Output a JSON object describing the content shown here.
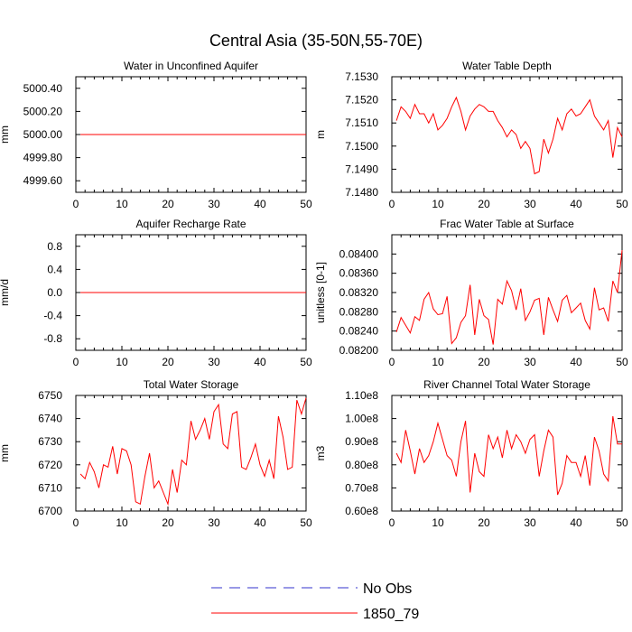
{
  "figure": {
    "title": "Central Asia (35-50N,55-70E)"
  },
  "colors": {
    "model_line": "#ff0000",
    "obs_line": "#3333cc",
    "axis": "#000000",
    "background": "#ffffff"
  },
  "legend": {
    "items": [
      {
        "label": "No Obs",
        "style": "dashed",
        "color": "#3333cc"
      },
      {
        "label": "1850_79",
        "style": "solid",
        "color": "#ff0000"
      }
    ]
  },
  "chart_data": [
    {
      "type": "line",
      "title": "Water in Unconfined Aquifer",
      "ylabel": "mm",
      "xlabel": "",
      "xlim": [
        0,
        50
      ],
      "ylim": [
        4999.5,
        5000.5
      ],
      "xticks": [
        0,
        10,
        20,
        30,
        40,
        50
      ],
      "xtick_labels": [
        "0",
        "10",
        "20",
        "30",
        "40",
        "50"
      ],
      "yticks": [
        4999.6,
        4999.8,
        5000.0,
        5000.2,
        5000.4
      ],
      "ytick_labels": [
        "4999.60",
        "4999.80",
        "5000.00",
        "5000.20",
        "5000.40"
      ],
      "series": [
        {
          "name": "1850_79",
          "x": [
            1,
            2,
            3,
            4,
            5,
            6,
            7,
            8,
            9,
            10,
            11,
            12,
            13,
            14,
            15,
            16,
            17,
            18,
            19,
            20,
            21,
            22,
            23,
            24,
            25,
            26,
            27,
            28,
            29,
            30,
            31,
            32,
            33,
            34,
            35,
            36,
            37,
            38,
            39,
            40,
            41,
            42,
            43,
            44,
            45,
            46,
            47,
            48,
            49,
            50
          ],
          "values": [
            5000,
            5000,
            5000,
            5000,
            5000,
            5000,
            5000,
            5000,
            5000,
            5000,
            5000,
            5000,
            5000,
            5000,
            5000,
            5000,
            5000,
            5000,
            5000,
            5000,
            5000,
            5000,
            5000,
            5000,
            5000,
            5000,
            5000,
            5000,
            5000,
            5000,
            5000,
            5000,
            5000,
            5000,
            5000,
            5000,
            5000,
            5000,
            5000,
            5000,
            5000,
            5000,
            5000,
            5000,
            5000,
            5000,
            5000,
            5000,
            5000,
            5000
          ]
        }
      ]
    },
    {
      "type": "line",
      "title": "Water Table Depth",
      "ylabel": "m",
      "xlabel": "",
      "xlim": [
        0,
        50
      ],
      "ylim": [
        7.148,
        7.153
      ],
      "xticks": [
        0,
        10,
        20,
        30,
        40,
        50
      ],
      "xtick_labels": [
        "0",
        "10",
        "20",
        "30",
        "40",
        "50"
      ],
      "yticks": [
        7.148,
        7.149,
        7.15,
        7.151,
        7.152,
        7.153
      ],
      "ytick_labels": [
        "7.1480",
        "7.1490",
        "7.1500",
        "7.1510",
        "7.1520",
        "7.1530"
      ],
      "series": [
        {
          "name": "1850_79",
          "x": [
            1,
            2,
            3,
            4,
            5,
            6,
            7,
            8,
            9,
            10,
            11,
            12,
            13,
            14,
            15,
            16,
            17,
            18,
            19,
            20,
            21,
            22,
            23,
            24,
            25,
            26,
            27,
            28,
            29,
            30,
            31,
            32,
            33,
            34,
            35,
            36,
            37,
            38,
            39,
            40,
            41,
            42,
            43,
            44,
            45,
            46,
            47,
            48,
            49,
            50
          ],
          "values": [
            7.1511,
            7.1517,
            7.1515,
            7.1512,
            7.1518,
            7.1514,
            7.1514,
            7.151,
            7.1514,
            7.1507,
            7.1509,
            7.1512,
            7.1517,
            7.1521,
            7.1515,
            7.1507,
            7.1513,
            7.1516,
            7.1518,
            7.1517,
            7.1515,
            7.1515,
            7.1511,
            7.1508,
            7.1504,
            7.1507,
            7.1505,
            7.1499,
            7.1502,
            7.1499,
            7.1488,
            7.1489,
            7.1503,
            7.1497,
            7.1503,
            7.1512,
            7.1507,
            7.1514,
            7.1516,
            7.1513,
            7.1514,
            7.1517,
            7.152,
            7.1513,
            7.151,
            7.1507,
            7.1511,
            7.1495,
            7.1508,
            7.1504
          ]
        }
      ]
    },
    {
      "type": "line",
      "title": "Aquifer Recharge Rate",
      "ylabel": "mm/d",
      "xlabel": "",
      "xlim": [
        0,
        50
      ],
      "ylim": [
        -1.0,
        1.0
      ],
      "xticks": [
        0,
        10,
        20,
        30,
        40,
        50
      ],
      "xtick_labels": [
        "0",
        "10",
        "20",
        "30",
        "40",
        "50"
      ],
      "yticks": [
        -0.8,
        -0.4,
        0.0,
        0.4,
        0.8
      ],
      "ytick_labels": [
        "-0.8",
        "-0.4",
        "0.0",
        "0.4",
        "0.8"
      ],
      "series": [
        {
          "name": "1850_79",
          "x": [
            1,
            2,
            3,
            4,
            5,
            6,
            7,
            8,
            9,
            10,
            11,
            12,
            13,
            14,
            15,
            16,
            17,
            18,
            19,
            20,
            21,
            22,
            23,
            24,
            25,
            26,
            27,
            28,
            29,
            30,
            31,
            32,
            33,
            34,
            35,
            36,
            37,
            38,
            39,
            40,
            41,
            42,
            43,
            44,
            45,
            46,
            47,
            48,
            49,
            50
          ],
          "values": [
            0,
            0,
            0,
            0,
            0,
            0,
            0,
            0,
            0,
            0,
            0,
            0,
            0,
            0,
            0,
            0,
            0,
            0,
            0,
            0,
            0,
            0,
            0,
            0,
            0,
            0,
            0,
            0,
            0,
            0,
            0,
            0,
            0,
            0,
            0,
            0,
            0,
            0,
            0,
            0,
            0,
            0,
            0,
            0,
            0,
            0,
            0,
            0,
            0,
            0
          ]
        }
      ]
    },
    {
      "type": "line",
      "title": "Frac Water Table at Surface",
      "ylabel": "unitless [0-1]",
      "xlabel": "",
      "xlim": [
        0,
        50
      ],
      "ylim": [
        0.082,
        0.0844
      ],
      "xticks": [
        0,
        10,
        20,
        30,
        40,
        50
      ],
      "xtick_labels": [
        "0",
        "10",
        "20",
        "30",
        "40",
        "50"
      ],
      "yticks": [
        0.082,
        0.0824,
        0.0828,
        0.0832,
        0.0836,
        0.084
      ],
      "ytick_labels": [
        "0.08200",
        "0.08240",
        "0.08280",
        "0.08320",
        "0.08360",
        "0.08400"
      ],
      "series": [
        {
          "name": "1850_79",
          "x": [
            1,
            2,
            3,
            4,
            5,
            6,
            7,
            8,
            9,
            10,
            11,
            12,
            13,
            14,
            15,
            16,
            17,
            18,
            19,
            20,
            21,
            22,
            23,
            24,
            25,
            26,
            27,
            28,
            29,
            30,
            31,
            32,
            33,
            34,
            35,
            36,
            37,
            38,
            39,
            40,
            41,
            42,
            43,
            44,
            45,
            46,
            47,
            48,
            49,
            50
          ],
          "values": [
            0.08238,
            0.08268,
            0.08252,
            0.08236,
            0.0827,
            0.08262,
            0.08306,
            0.0832,
            0.08286,
            0.08274,
            0.08276,
            0.08312,
            0.08214,
            0.08226,
            0.08258,
            0.08272,
            0.08336,
            0.08232,
            0.08306,
            0.08272,
            0.08264,
            0.08212,
            0.08306,
            0.08296,
            0.08344,
            0.08324,
            0.08284,
            0.08328,
            0.08262,
            0.0828,
            0.08304,
            0.08308,
            0.08232,
            0.0831,
            0.08284,
            0.0826,
            0.08304,
            0.08314,
            0.08278,
            0.08288,
            0.08298,
            0.08262,
            0.08244,
            0.0833,
            0.08284,
            0.08288,
            0.0826,
            0.08344,
            0.0832,
            0.08408
          ]
        }
      ]
    },
    {
      "type": "line",
      "title": "Total Water Storage",
      "ylabel": "mm",
      "xlabel": "",
      "xlim": [
        0,
        50
      ],
      "ylim": [
        6700,
        6750
      ],
      "xticks": [
        0,
        10,
        20,
        30,
        40,
        50
      ],
      "xtick_labels": [
        "0",
        "10",
        "20",
        "30",
        "40",
        "50"
      ],
      "yticks": [
        6700,
        6710,
        6720,
        6730,
        6740,
        6750
      ],
      "ytick_labels": [
        "6700",
        "6710",
        "6720",
        "6730",
        "6740",
        "6750"
      ],
      "series": [
        {
          "name": "1850_79",
          "x": [
            1,
            2,
            3,
            4,
            5,
            6,
            7,
            8,
            9,
            10,
            11,
            12,
            13,
            14,
            15,
            16,
            17,
            18,
            19,
            20,
            21,
            22,
            23,
            24,
            25,
            26,
            27,
            28,
            29,
            30,
            31,
            32,
            33,
            34,
            35,
            36,
            37,
            38,
            39,
            40,
            41,
            42,
            43,
            44,
            45,
            46,
            47,
            48,
            49,
            50
          ],
          "values": [
            6716,
            6714,
            6721,
            6717,
            6710,
            6720,
            6719,
            6728,
            6716,
            6727,
            6726,
            6720,
            6704,
            6703,
            6715,
            6725,
            6710,
            6713,
            6708,
            6703,
            6718,
            6708,
            6722,
            6720,
            6739,
            6731,
            6735,
            6740,
            6731,
            6743,
            6746,
            6729,
            6727,
            6742,
            6743,
            6719,
            6718,
            6723,
            6729,
            6720,
            6715,
            6722,
            6714,
            6741,
            6732,
            6718,
            6719,
            6748,
            6742,
            6749
          ]
        }
      ]
    },
    {
      "type": "line",
      "title": "River Channel Total Water Storage",
      "ylabel": "m3",
      "xlabel": "",
      "xlim": [
        0,
        50
      ],
      "ylim": [
        60000000.0,
        110000000.0
      ],
      "xticks": [
        0,
        10,
        20,
        30,
        40,
        50
      ],
      "xtick_labels": [
        "0",
        "10",
        "20",
        "30",
        "40",
        "50"
      ],
      "yticks": [
        60000000.0,
        70000000.0,
        80000000.0,
        90000000.0,
        100000000.0,
        110000000.0
      ],
      "ytick_labels": [
        "0.60e8",
        "0.70e8",
        "0.80e8",
        "0.90e8",
        "1.00e8",
        "1.10e8"
      ],
      "series": [
        {
          "name": "1850_79",
          "x": [
            1,
            2,
            3,
            4,
            5,
            6,
            7,
            8,
            9,
            10,
            11,
            12,
            13,
            14,
            15,
            16,
            17,
            18,
            19,
            20,
            21,
            22,
            23,
            24,
            25,
            26,
            27,
            28,
            29,
            30,
            31,
            32,
            33,
            34,
            35,
            36,
            37,
            38,
            39,
            40,
            41,
            42,
            43,
            44,
            45,
            46,
            47,
            48,
            49,
            50
          ],
          "values": [
            85000000.0,
            81000000.0,
            95000000.0,
            86000000.0,
            76000000.0,
            87000000.0,
            81000000.0,
            84000000.0,
            90000000.0,
            98000000.0,
            91000000.0,
            84000000.0,
            82000000.0,
            75000000.0,
            90000000.0,
            99000000.0,
            68000000.0,
            85000000.0,
            77000000.0,
            75000000.0,
            93000000.0,
            87000000.0,
            92000000.0,
            83000000.0,
            95000000.0,
            87000000.0,
            93000000.0,
            90000000.0,
            85000000.0,
            91000000.0,
            93000000.0,
            75000000.0,
            86000000.0,
            95000000.0,
            92000000.0,
            67000000.0,
            72000000.0,
            84000000.0,
            81000000.0,
            81000000.0,
            75000000.0,
            84000000.0,
            71000000.0,
            92000000.0,
            86000000.0,
            76000000.0,
            73000000.0,
            101000000.0,
            89000000.0,
            89000000.0
          ]
        }
      ]
    }
  ]
}
